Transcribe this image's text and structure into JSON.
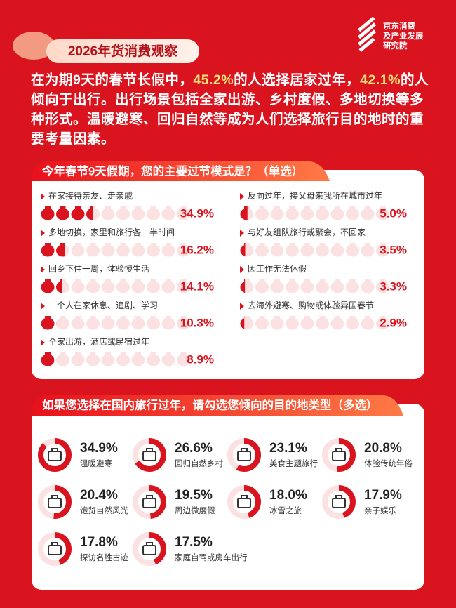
{
  "header": {
    "badge": "2026年货消费观察",
    "logo": [
      "京东消费",
      "及产业发展",
      "研究院"
    ]
  },
  "intro": [
    "在为期9天的春节长假中，",
    "45.2%",
    "的人选择居家过年，",
    "42.1%",
    "的人倾向于出行。出行场景包括全家出游、乡村度假、多地切换等多种形式。温暖避寒、回归自然等成为人们选择旅行目的地时的重要考量因素。"
  ],
  "chart_data": [
    {
      "type": "pictograph",
      "title": "今年春节9天假期，您的主要过节模式是？（单选）",
      "categories": [
        "在家接待亲友、走亲戚",
        "多地切换，家里和旅行各一半时间",
        "回乡下住一周，体验慢生活",
        "一个人在家休息、追剧、学习",
        "全家出游，酒店或民宿过年",
        "反向过年，接父母来我所在城市过年",
        "与好友组队旅行或聚会，不回家",
        "因工作无法休假",
        "去海外避寒、购物或体验异国春节"
      ],
      "values": [
        34.9,
        16.2,
        14.1,
        10.3,
        8.9,
        5.0,
        3.5,
        3.3,
        2.9
      ],
      "value_labels": [
        "34.9%",
        "16.2%",
        "14.1%",
        "10.3%",
        "8.9%",
        "5.0%",
        "3.5%",
        "3.3%",
        "2.9%"
      ],
      "xlim": [
        0,
        100
      ],
      "color": "#d9141f"
    },
    {
      "type": "donut",
      "title": "如果您选择在国内旅行过年，请勾选您倾向的目的地类型（多选）",
      "categories": [
        "温暖避寒",
        "回归自然乡村",
        "美食主题旅行",
        "体验传统年俗",
        "饱览自然风光",
        "周边微度假",
        "冰雪之旅",
        "亲子娱乐",
        "探访名胜古迹",
        "家庭自驾或房车出行"
      ],
      "values": [
        34.9,
        26.6,
        23.1,
        20.8,
        20.4,
        19.5,
        18.0,
        17.9,
        17.8,
        17.5
      ],
      "value_labels": [
        "34.9%",
        "26.6%",
        "23.1%",
        "20.8%",
        "20.4%",
        "19.5%",
        "18.0%",
        "17.9%",
        "17.8%",
        "17.5%"
      ],
      "rlim": [
        0,
        40
      ],
      "color": "#d9141f"
    }
  ]
}
